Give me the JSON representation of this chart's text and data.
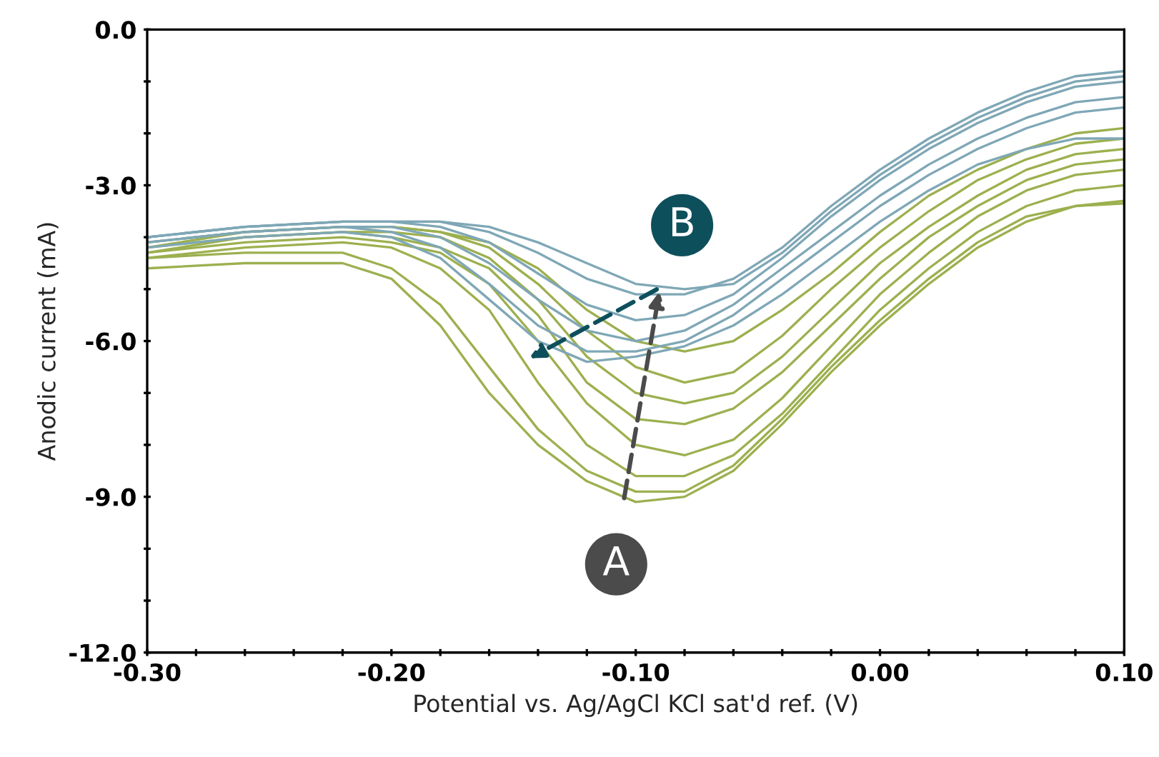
{
  "chart_data": {
    "type": "line",
    "xlabel": "Potential vs. Ag/AgCl KCl sat'd ref. (V)",
    "ylabel": "Anodic current (mA)",
    "x": [
      -0.3,
      -0.26,
      -0.22,
      -0.2,
      -0.18,
      -0.16,
      -0.14,
      -0.12,
      -0.1,
      -0.08,
      -0.06,
      -0.04,
      -0.02,
      0.0,
      0.02,
      0.04,
      0.06,
      0.08,
      0.1
    ],
    "xlim": [
      -0.3,
      0.1
    ],
    "xticks": [
      {
        "value": -0.3,
        "label": "-0.30"
      },
      {
        "value": -0.28,
        "label": null
      },
      {
        "value": -0.26,
        "label": null
      },
      {
        "value": -0.24,
        "label": null
      },
      {
        "value": -0.22,
        "label": null
      },
      {
        "value": -0.2,
        "label": "-0.20"
      },
      {
        "value": -0.18,
        "label": null
      },
      {
        "value": -0.16,
        "label": null
      },
      {
        "value": -0.14,
        "label": null
      },
      {
        "value": -0.12,
        "label": null
      },
      {
        "value": -0.1,
        "label": "-0.10"
      },
      {
        "value": -0.08,
        "label": null
      },
      {
        "value": -0.06,
        "label": null
      },
      {
        "value": -0.04,
        "label": null
      },
      {
        "value": -0.02,
        "label": null
      },
      {
        "value": 0.0,
        "label": "0.00"
      },
      {
        "value": 0.02,
        "label": null
      },
      {
        "value": 0.04,
        "label": null
      },
      {
        "value": 0.06,
        "label": null
      },
      {
        "value": 0.08,
        "label": null
      },
      {
        "value": 0.1,
        "label": "0.10"
      }
    ],
    "ylim": [
      -12,
      0
    ],
    "yticks": [
      {
        "value": -12,
        "label": "-12.0"
      },
      {
        "value": -11,
        "label": null
      },
      {
        "value": -10,
        "label": null
      },
      {
        "value": -9,
        "label": "-9.0"
      },
      {
        "value": -8,
        "label": null
      },
      {
        "value": -7,
        "label": null
      },
      {
        "value": -6,
        "label": "-6.0"
      },
      {
        "value": -5,
        "label": null
      },
      {
        "value": -4,
        "label": null
      },
      {
        "value": -3,
        "label": "-3.0"
      },
      {
        "value": -2,
        "label": null
      },
      {
        "value": -1,
        "label": null
      },
      {
        "value": 0,
        "label": "0.0"
      }
    ],
    "grid": false,
    "legend": false,
    "marker": "none",
    "line_style": "solid",
    "series": [
      {
        "color": "#9cb04f",
        "values": [
          -4.6,
          -4.5,
          -4.5,
          -4.8,
          -5.7,
          -7.0,
          -8.0,
          -8.7,
          -9.1,
          -9.0,
          -8.5,
          -7.6,
          -6.6,
          -5.7,
          -4.9,
          -4.2,
          -3.7,
          -3.4,
          -3.35
        ]
      },
      {
        "color": "#9cb04f",
        "values": [
          -4.4,
          -4.3,
          -4.3,
          -4.6,
          -5.3,
          -6.5,
          -7.7,
          -8.5,
          -8.9,
          -8.9,
          -8.4,
          -7.5,
          -6.5,
          -5.6,
          -4.8,
          -4.1,
          -3.6,
          -3.4,
          -3.3
        ]
      },
      {
        "color": "#9cb04f",
        "values": [
          -4.4,
          -4.2,
          -4.1,
          -4.2,
          -4.6,
          -5.4,
          -6.8,
          -8.0,
          -8.6,
          -8.6,
          -8.2,
          -7.4,
          -6.4,
          -5.4,
          -4.6,
          -3.9,
          -3.4,
          -3.1,
          -3.0
        ]
      },
      {
        "color": "#9cb04f",
        "values": [
          -4.3,
          -4.1,
          -4.0,
          -4.1,
          -4.3,
          -4.9,
          -6.0,
          -7.2,
          -8.0,
          -8.2,
          -7.9,
          -7.1,
          -6.1,
          -5.1,
          -4.3,
          -3.6,
          -3.1,
          -2.8,
          -2.7
        ]
      },
      {
        "color": "#9cb04f",
        "values": [
          -4.3,
          -4.0,
          -3.9,
          -4.0,
          -4.2,
          -4.6,
          -5.5,
          -6.8,
          -7.5,
          -7.6,
          -7.3,
          -6.6,
          -5.7,
          -4.8,
          -4.0,
          -3.4,
          -2.9,
          -2.6,
          -2.5
        ]
      },
      {
        "color": "#9cb04f",
        "values": [
          -4.2,
          -4.0,
          -3.9,
          -3.9,
          -4.0,
          -4.4,
          -5.2,
          -6.3,
          -7.0,
          -7.2,
          -7.0,
          -6.3,
          -5.4,
          -4.5,
          -3.8,
          -3.2,
          -2.7,
          -2.4,
          -2.3
        ]
      },
      {
        "color": "#9cb04f",
        "values": [
          -4.2,
          -3.9,
          -3.8,
          -3.8,
          -3.9,
          -4.2,
          -4.9,
          -5.8,
          -6.5,
          -6.8,
          -6.6,
          -5.9,
          -5.0,
          -4.2,
          -3.5,
          -2.9,
          -2.5,
          -2.2,
          -2.1
        ]
      },
      {
        "color": "#9cb04f",
        "values": [
          -4.1,
          -3.9,
          -3.8,
          -3.8,
          -3.9,
          -4.1,
          -4.6,
          -5.4,
          -6.0,
          -6.2,
          -6.0,
          -5.4,
          -4.7,
          -3.9,
          -3.2,
          -2.7,
          -2.3,
          -2.0,
          -1.9
        ]
      },
      {
        "color": "#7fa7b6",
        "values": [
          -4.2,
          -4.0,
          -3.9,
          -4.0,
          -4.4,
          -5.2,
          -6.0,
          -6.4,
          -6.3,
          -6.1,
          -5.7,
          -5.1,
          -4.4,
          -3.7,
          -3.1,
          -2.6,
          -2.3,
          -2.1,
          -2.1
        ]
      },
      {
        "color": "#7fa7b6",
        "values": [
          -4.1,
          -3.9,
          -3.8,
          -3.9,
          -4.2,
          -4.9,
          -5.7,
          -6.2,
          -6.2,
          -6.0,
          -5.5,
          -4.8,
          -4.1,
          -3.4,
          -2.8,
          -2.3,
          -1.9,
          -1.6,
          -1.5
        ]
      },
      {
        "color": "#7fa7b6",
        "values": [
          -4.1,
          -3.9,
          -3.8,
          -3.8,
          -4.0,
          -4.5,
          -5.2,
          -5.8,
          -6.0,
          -5.8,
          -5.3,
          -4.6,
          -3.9,
          -3.2,
          -2.6,
          -2.1,
          -1.7,
          -1.4,
          -1.3
        ]
      },
      {
        "color": "#7fa7b6",
        "values": [
          -4.0,
          -3.8,
          -3.7,
          -3.7,
          -3.8,
          -4.1,
          -4.7,
          -5.3,
          -5.6,
          -5.5,
          -5.1,
          -4.4,
          -3.6,
          -2.9,
          -2.3,
          -1.8,
          -1.4,
          -1.1,
          -1.0
        ]
      },
      {
        "color": "#7fa7b6",
        "values": [
          -4.0,
          -3.8,
          -3.7,
          -3.7,
          -3.7,
          -3.9,
          -4.3,
          -4.8,
          -5.1,
          -5.1,
          -4.8,
          -4.2,
          -3.4,
          -2.7,
          -2.1,
          -1.6,
          -1.2,
          -0.9,
          -0.8
        ]
      },
      {
        "color": "#7fa7b6",
        "values": [
          -4.0,
          -3.8,
          -3.7,
          -3.7,
          -3.7,
          -3.8,
          -4.1,
          -4.5,
          -4.9,
          -5.0,
          -4.9,
          -4.3,
          -3.5,
          -2.8,
          -2.2,
          -1.7,
          -1.3,
          -1.0,
          -0.9
        ]
      }
    ],
    "annotations": [
      {
        "text": "A",
        "x": -0.108,
        "y": -10.3
      },
      {
        "text": "B",
        "x": -0.081,
        "y": -3.77
      }
    ]
  }
}
